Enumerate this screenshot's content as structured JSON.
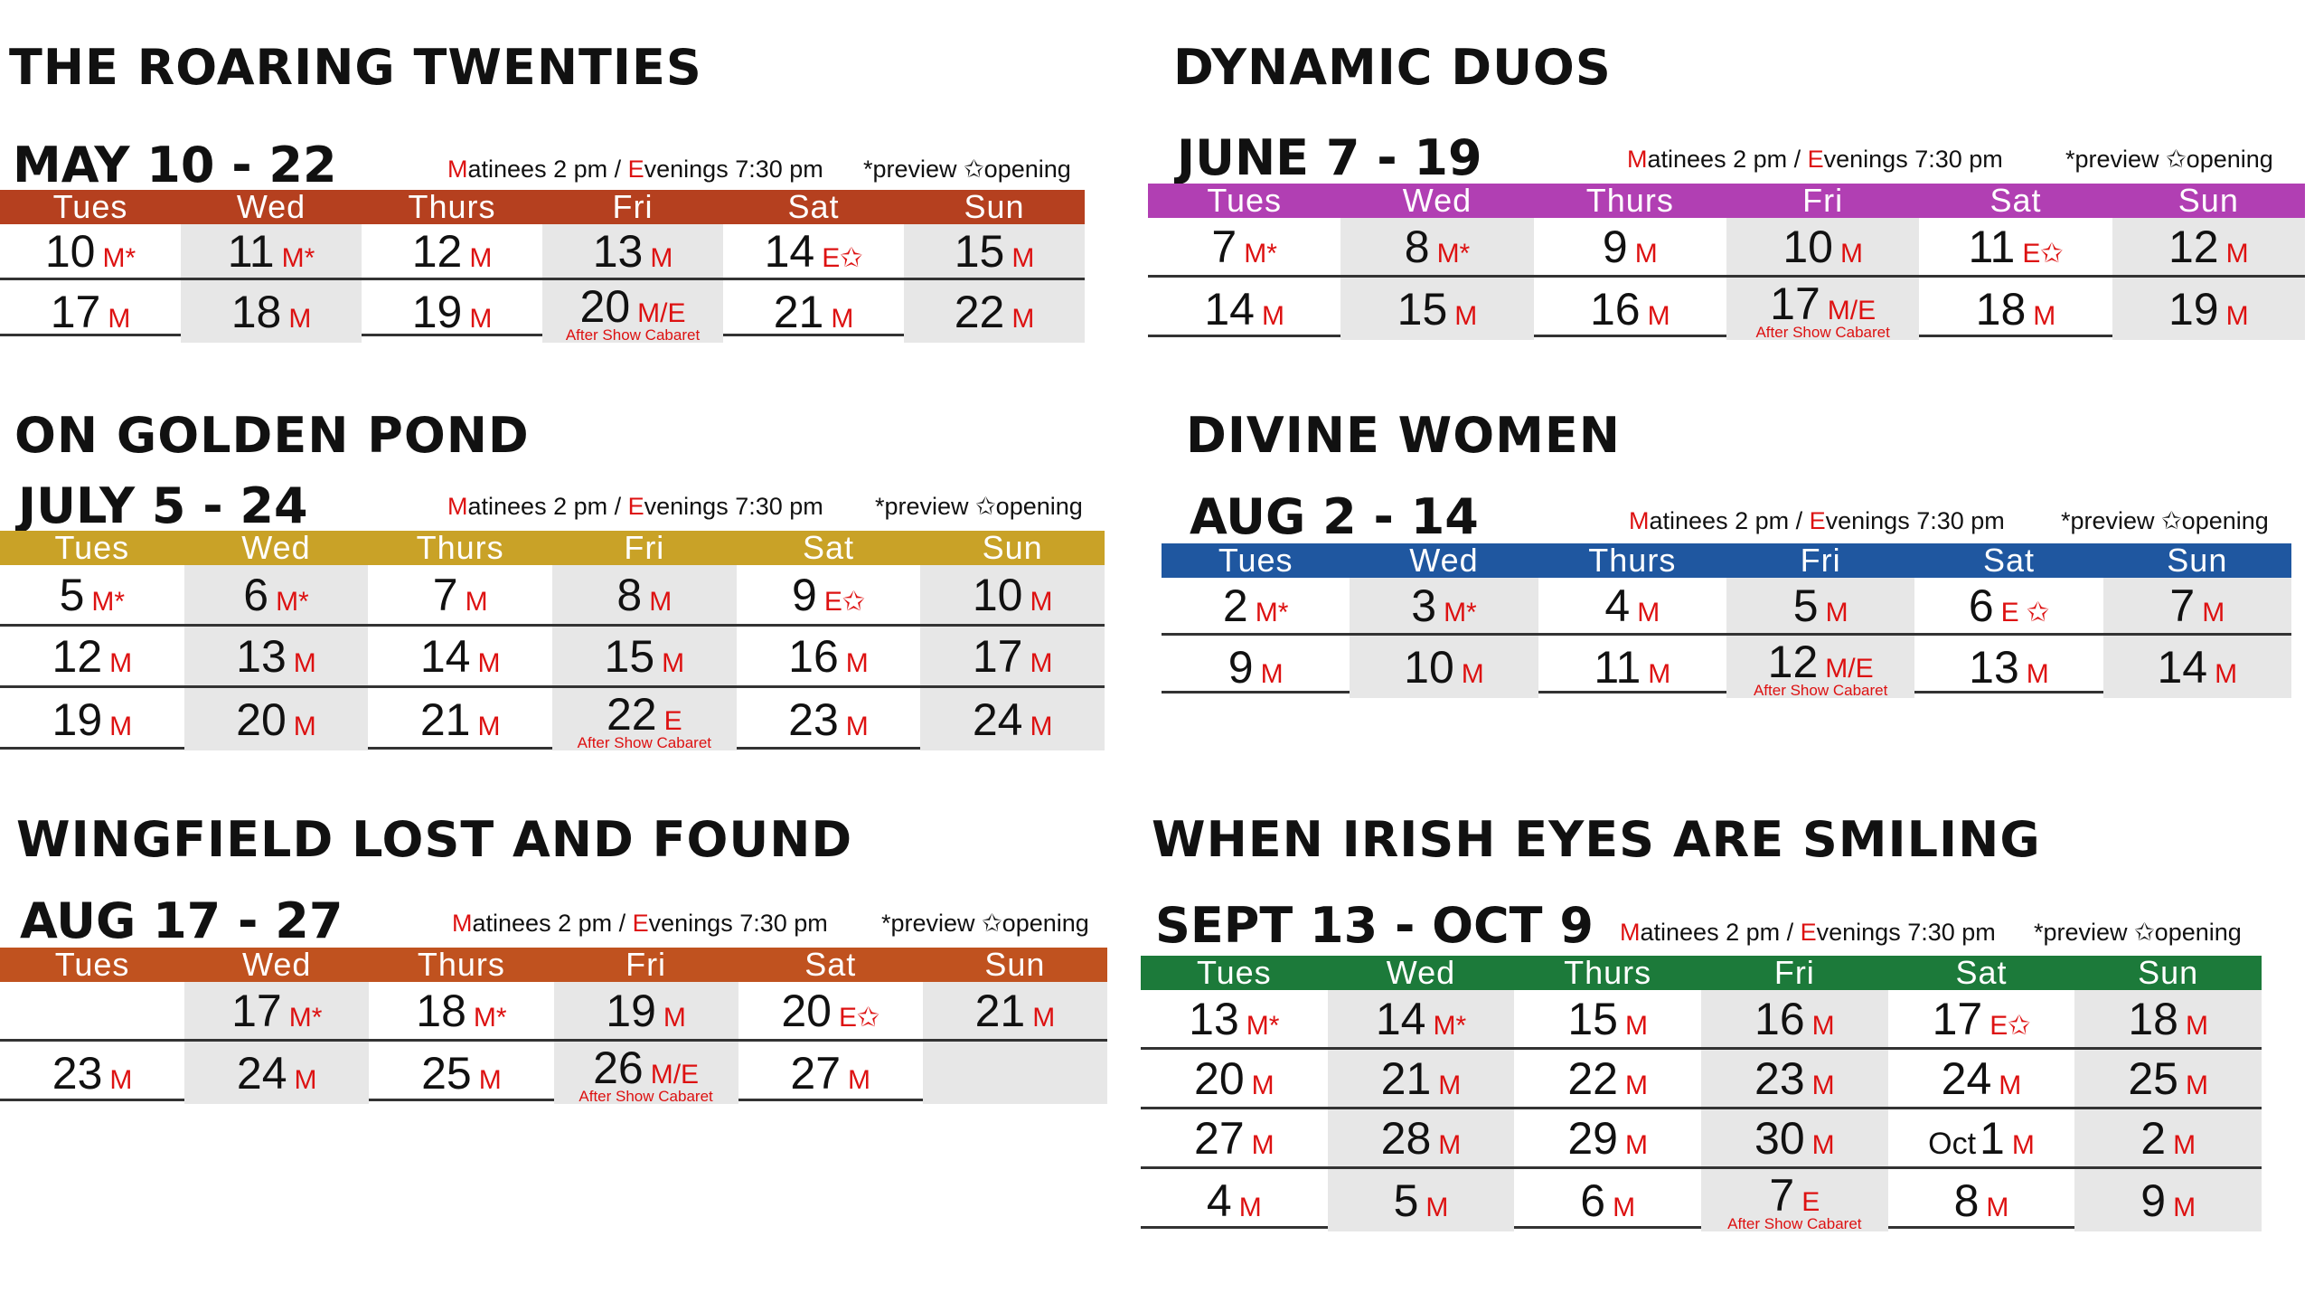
{
  "legend": {
    "preview": "*preview",
    "opening": "✩opening"
  },
  "times": {
    "mat_letter": "M",
    "mat_rest": "atinees 2 pm / ",
    "eve_letter": "E",
    "eve_rest": "venings 7:30 pm"
  },
  "days": [
    "Tues",
    "Wed",
    "Thurs",
    "Fri",
    "Sat",
    "Sun"
  ],
  "shows": [
    {
      "title": "THE ROARING TWENTIES",
      "dates": "MAY 10 - 22",
      "color": "#b5401f",
      "rows": [
        [
          {
            "d": "10",
            "m": "M*"
          },
          {
            "d": "11",
            "m": "M*"
          },
          {
            "d": "12",
            "m": "M"
          },
          {
            "d": "13",
            "m": "M"
          },
          {
            "d": "14",
            "m": "E✩"
          },
          {
            "d": "15",
            "m": "M"
          }
        ],
        [
          {
            "d": "17",
            "m": "M"
          },
          {
            "d": "18",
            "m": "M"
          },
          {
            "d": "19",
            "m": "M"
          },
          {
            "d": "20",
            "m": "M/E",
            "note": "After Show Cabaret"
          },
          {
            "d": "21",
            "m": "M"
          },
          {
            "d": "22",
            "m": "M"
          }
        ]
      ]
    },
    {
      "title": "DYNAMIC DUOS",
      "dates": "JUNE 7 - 19",
      "color": "#b13fb3",
      "rows": [
        [
          {
            "d": "7",
            "m": "M*"
          },
          {
            "d": "8",
            "m": "M*"
          },
          {
            "d": "9",
            "m": "M"
          },
          {
            "d": "10",
            "m": "M"
          },
          {
            "d": "11",
            "m": "E✩"
          },
          {
            "d": "12",
            "m": "M"
          }
        ],
        [
          {
            "d": "14",
            "m": "M"
          },
          {
            "d": "15",
            "m": "M"
          },
          {
            "d": "16",
            "m": "M"
          },
          {
            "d": "17",
            "m": "M/E",
            "note": "After Show Cabaret"
          },
          {
            "d": "18",
            "m": "M"
          },
          {
            "d": "19",
            "m": "M"
          }
        ]
      ]
    },
    {
      "title": "ON GOLDEN POND",
      "dates": "JULY 5 - 24",
      "color": "#c9a227",
      "rows": [
        [
          {
            "d": "5",
            "m": "M*"
          },
          {
            "d": "6",
            "m": "M*"
          },
          {
            "d": "7",
            "m": "M"
          },
          {
            "d": "8",
            "m": "M"
          },
          {
            "d": "9",
            "m": "E✩"
          },
          {
            "d": "10",
            "m": "M"
          }
        ],
        [
          {
            "d": "12",
            "m": "M"
          },
          {
            "d": "13",
            "m": "M"
          },
          {
            "d": "14",
            "m": "M"
          },
          {
            "d": "15",
            "m": "M"
          },
          {
            "d": "16",
            "m": "M"
          },
          {
            "d": "17",
            "m": "M"
          }
        ],
        [
          {
            "d": "19",
            "m": "M"
          },
          {
            "d": "20",
            "m": "M"
          },
          {
            "d": "21",
            "m": "M"
          },
          {
            "d": "22",
            "m": "E",
            "note": "After Show Cabaret"
          },
          {
            "d": "23",
            "m": "M"
          },
          {
            "d": "24",
            "m": "M"
          }
        ]
      ]
    },
    {
      "title": "DIVINE WOMEN",
      "dates": "AUG 2 - 14",
      "color": "#1f57a0",
      "rows": [
        [
          {
            "d": "2",
            "m": "M*"
          },
          {
            "d": "3",
            "m": "M*"
          },
          {
            "d": "4",
            "m": "M"
          },
          {
            "d": "5",
            "m": "M"
          },
          {
            "d": "6",
            "m": "E ✩"
          },
          {
            "d": "7",
            "m": "M"
          }
        ],
        [
          {
            "d": "9",
            "m": "M"
          },
          {
            "d": "10",
            "m": "M"
          },
          {
            "d": "11",
            "m": "M"
          },
          {
            "d": "12",
            "m": "M/E",
            "note": "After Show Cabaret"
          },
          {
            "d": "13",
            "m": "M"
          },
          {
            "d": "14",
            "m": "M"
          }
        ]
      ]
    },
    {
      "title": "WINGFIELD LOST AND FOUND",
      "dates": "AUG 17 - 27",
      "color": "#c0521f",
      "rows": [
        [
          {
            "d": "",
            "m": ""
          },
          {
            "d": "17",
            "m": "M*"
          },
          {
            "d": "18",
            "m": "M*"
          },
          {
            "d": "19",
            "m": "M"
          },
          {
            "d": "20",
            "m": "E✩"
          },
          {
            "d": "21",
            "m": "M"
          }
        ],
        [
          {
            "d": "23",
            "m": "M"
          },
          {
            "d": "24",
            "m": "M"
          },
          {
            "d": "25",
            "m": "M"
          },
          {
            "d": "26",
            "m": "M/E",
            "note": "After Show Cabaret"
          },
          {
            "d": "27",
            "m": "M"
          },
          {
            "d": "",
            "m": ""
          }
        ]
      ]
    },
    {
      "title": "WHEN IRISH EYES ARE SMILING",
      "dates": "SEPT 13 - OCT 9",
      "color": "#1c7a3a",
      "rows": [
        [
          {
            "d": "13",
            "m": "M*"
          },
          {
            "d": "14",
            "m": "M*"
          },
          {
            "d": "15",
            "m": "M"
          },
          {
            "d": "16",
            "m": "M"
          },
          {
            "d": "17",
            "m": "E✩"
          },
          {
            "d": "18",
            "m": "M"
          }
        ],
        [
          {
            "d": "20",
            "m": "M"
          },
          {
            "d": "21",
            "m": "M"
          },
          {
            "d": "22",
            "m": "M"
          },
          {
            "d": "23",
            "m": "M"
          },
          {
            "d": "24",
            "m": "M"
          },
          {
            "d": "25",
            "m": "M"
          }
        ],
        [
          {
            "d": "27",
            "m": "M"
          },
          {
            "d": "28",
            "m": "M"
          },
          {
            "d": "29",
            "m": "M"
          },
          {
            "d": "30",
            "m": "M"
          },
          {
            "d": "1",
            "mon": "Oct",
            "m": "M"
          },
          {
            "d": "2",
            "m": "M"
          }
        ],
        [
          {
            "d": "4",
            "m": "M"
          },
          {
            "d": "5",
            "m": "M"
          },
          {
            "d": "6",
            "m": "M"
          },
          {
            "d": "7",
            "m": "E",
            "note": "After Show Cabaret"
          },
          {
            "d": "8",
            "m": "M"
          },
          {
            "d": "9",
            "m": "M"
          }
        ]
      ]
    }
  ]
}
